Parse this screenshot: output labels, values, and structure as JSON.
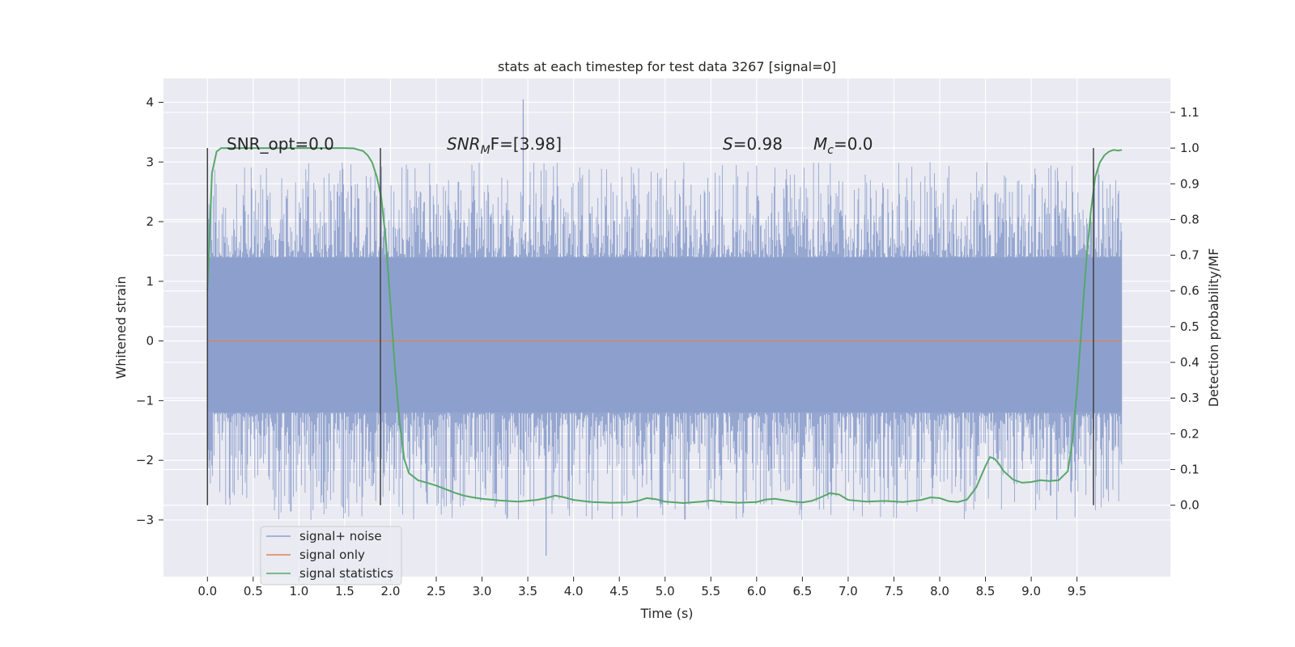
{
  "chart_data": {
    "type": "line",
    "title": "stats at each timestep for test data 3267 [signal=0]",
    "xlabel": "Time (s)",
    "ylabel_left": "Whitened strain",
    "ylabel_right": "Detection probability/MF",
    "xlim": [
      -0.48,
      10.52
    ],
    "ylim_left": [
      -3.95,
      4.4
    ],
    "ylim_right": [
      -0.2,
      1.195
    ],
    "x_ticks": [
      "0.0",
      "0.5",
      "1.0",
      "1.5",
      "2.0",
      "2.5",
      "3.0",
      "3.5",
      "4.0",
      "4.5",
      "5.0",
      "5.5",
      "6.0",
      "6.5",
      "7.0",
      "7.5",
      "8.0",
      "8.5",
      "9.0",
      "9.5"
    ],
    "y_left_ticks": [
      "4",
      "3",
      "2",
      "1",
      "0",
      "−1",
      "−2",
      "−3"
    ],
    "y_right_ticks": [
      "1.1",
      "1.0",
      "0.9",
      "0.8",
      "0.7",
      "0.6",
      "0.5",
      "0.4",
      "0.3",
      "0.2",
      "0.1",
      "0.0"
    ],
    "grid": true,
    "legend_position": "lower-left",
    "colors": {
      "plot_bg": "#eaeaf2",
      "grid": "#ffffff",
      "noise": "#8c9fcc",
      "signal_only": "#dd8452",
      "statistics": "#55a868",
      "window_lines": "#404040"
    },
    "annotations": {
      "snr_opt": "SNR_opt=0.0",
      "snr_mf_prefix": "SNR",
      "snr_mf_sub": "M",
      "snr_mf_suffix": "F=[3.98]",
      "s_var": "S",
      "s_value": "=0.98",
      "mc_var": "M",
      "mc_sub": "c",
      "mc_value": "=0.0"
    },
    "window_lines_x": [
      0.0,
      1.89,
      9.68
    ],
    "series": [
      {
        "name": "signal+ noise",
        "axis": "left",
        "type": "noise-band",
        "x_range": [
          0.0,
          9.99
        ],
        "band_low": -1.2,
        "band_high": 1.4,
        "typical_peak_high": 2.3,
        "typical_peak_low": -2.3,
        "max": 4.05,
        "min": -3.6
      },
      {
        "name": "signal only",
        "axis": "left",
        "x": [
          0.0,
          9.99
        ],
        "y": [
          0.0,
          0.0
        ]
      },
      {
        "name": "signal statistics",
        "axis": "right",
        "x": [
          0.0,
          0.05,
          0.1,
          0.15,
          0.2,
          0.3,
          0.5,
          0.8,
          1.0,
          1.3,
          1.5,
          1.6,
          1.7,
          1.75,
          1.8,
          1.85,
          1.9,
          1.95,
          2.0,
          2.05,
          2.1,
          2.15,
          2.2,
          2.3,
          2.4,
          2.5,
          2.6,
          2.7,
          2.8,
          2.9,
          3.0,
          3.2,
          3.4,
          3.6,
          3.7,
          3.8,
          3.9,
          4.0,
          4.2,
          4.4,
          4.6,
          4.7,
          4.8,
          4.9,
          5.0,
          5.2,
          5.4,
          5.5,
          5.6,
          5.8,
          6.0,
          6.1,
          6.2,
          6.4,
          6.5,
          6.6,
          6.7,
          6.8,
          6.9,
          7.0,
          7.2,
          7.4,
          7.6,
          7.8,
          7.9,
          8.0,
          8.1,
          8.2,
          8.3,
          8.4,
          8.5,
          8.55,
          8.6,
          8.65,
          8.7,
          8.8,
          8.9,
          9.0,
          9.1,
          9.2,
          9.3,
          9.4,
          9.45,
          9.5,
          9.55,
          9.6,
          9.65,
          9.7,
          9.75,
          9.8,
          9.85,
          9.9,
          9.95,
          9.99
        ],
        "y": [
          0.6,
          0.93,
          0.99,
          1.0,
          1.0,
          1.0,
          1.0,
          1.0,
          1.0,
          1.0,
          1.0,
          0.999,
          0.992,
          0.98,
          0.96,
          0.92,
          0.86,
          0.74,
          0.56,
          0.38,
          0.23,
          0.13,
          0.09,
          0.07,
          0.063,
          0.055,
          0.045,
          0.035,
          0.027,
          0.022,
          0.018,
          0.013,
          0.01,
          0.015,
          0.02,
          0.027,
          0.022,
          0.015,
          0.009,
          0.007,
          0.008,
          0.012,
          0.02,
          0.017,
          0.01,
          0.006,
          0.01,
          0.013,
          0.01,
          0.007,
          0.009,
          0.016,
          0.018,
          0.01,
          0.008,
          0.012,
          0.022,
          0.034,
          0.03,
          0.015,
          0.01,
          0.012,
          0.009,
          0.015,
          0.022,
          0.02,
          0.011,
          0.009,
          0.016,
          0.05,
          0.11,
          0.135,
          0.13,
          0.115,
          0.095,
          0.072,
          0.063,
          0.065,
          0.07,
          0.068,
          0.07,
          0.095,
          0.18,
          0.32,
          0.5,
          0.68,
          0.82,
          0.92,
          0.96,
          0.98,
          0.99,
          0.995,
          0.993,
          0.995
        ]
      }
    ]
  }
}
